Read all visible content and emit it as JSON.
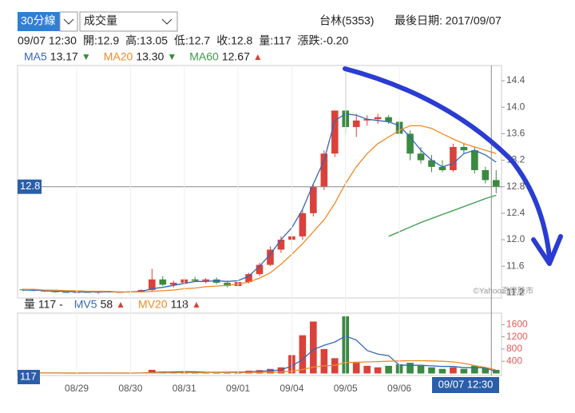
{
  "header": {
    "period_select": "30分線",
    "indicator_select": "成交量",
    "stock": "台林(5353)",
    "last_date": "最後日期: 2017/09/07",
    "info": [
      "09/07 12:30",
      "開:12.9",
      "高:13.05",
      "低:12.7",
      "收:12.8",
      "量:117",
      "漲跌:-0.20"
    ],
    "watermark": "©Yahoo奇摩股市"
  },
  "chart_data": [
    {
      "type": "candlestick",
      "current_label": "12.8",
      "up_color": "#d9423a",
      "down_color": "#3a8a40",
      "open": [
        11.25,
        11.24,
        11.23,
        11.22,
        11.21,
        11.2,
        11.21,
        11.2,
        11.22,
        11.21,
        11.21,
        11.22,
        11.24,
        11.4,
        11.32,
        11.35,
        11.4,
        11.38,
        11.4,
        11.35,
        11.3,
        11.36,
        11.48,
        11.62,
        11.85,
        12.0,
        12.05,
        12.4,
        12.8,
        13.3,
        13.95,
        13.7,
        13.8,
        13.82,
        13.85,
        13.78,
        13.6,
        13.3,
        13.2,
        13.1,
        13.05,
        13.4,
        13.35,
        13.05,
        12.9
      ],
      "high": [
        11.26,
        11.25,
        11.24,
        11.23,
        11.22,
        11.22,
        11.22,
        11.22,
        11.23,
        11.22,
        11.23,
        11.25,
        11.56,
        11.45,
        11.38,
        11.42,
        11.44,
        11.42,
        11.43,
        11.38,
        11.38,
        11.5,
        11.65,
        11.9,
        12.05,
        12.1,
        12.45,
        12.85,
        13.35,
        13.95,
        14.55,
        13.9,
        13.88,
        13.9,
        13.88,
        13.82,
        13.65,
        13.4,
        13.28,
        13.2,
        13.45,
        13.45,
        13.4,
        13.1,
        13.05
      ],
      "low": [
        11.22,
        11.22,
        11.21,
        11.2,
        11.2,
        11.19,
        11.2,
        11.18,
        11.2,
        11.2,
        11.2,
        11.21,
        11.22,
        11.3,
        11.28,
        11.32,
        11.36,
        11.34,
        11.33,
        11.28,
        11.28,
        11.34,
        11.45,
        11.6,
        11.8,
        11.9,
        12.0,
        12.35,
        12.75,
        13.25,
        13.6,
        13.55,
        13.72,
        13.75,
        13.75,
        13.55,
        13.2,
        13.15,
        13.02,
        13.02,
        13.02,
        13.3,
        13.0,
        12.85,
        12.7
      ],
      "close": [
        11.24,
        11.23,
        11.22,
        11.21,
        11.2,
        11.21,
        11.2,
        11.22,
        11.21,
        11.21,
        11.22,
        11.24,
        11.4,
        11.32,
        11.35,
        11.4,
        11.38,
        11.4,
        11.35,
        11.3,
        11.36,
        11.48,
        11.62,
        11.85,
        12.0,
        12.05,
        12.4,
        12.8,
        13.3,
        13.95,
        13.7,
        13.8,
        13.82,
        13.85,
        13.78,
        13.6,
        13.3,
        13.2,
        13.1,
        13.05,
        13.4,
        13.35,
        13.05,
        12.9,
        12.8
      ],
      "series": [
        {
          "name": "MA5",
          "color": "#3566b8",
          "legend_value": "13.17",
          "legend_arrow": "▼",
          "legend_arrow_color": "#3a8a40",
          "values": [
            11.24,
            11.24,
            11.23,
            11.22,
            11.22,
            11.21,
            11.21,
            11.21,
            11.21,
            11.21,
            11.21,
            11.22,
            11.26,
            11.28,
            11.31,
            11.34,
            11.37,
            11.37,
            11.38,
            11.37,
            11.38,
            11.45,
            11.6,
            11.78,
            12.0,
            12.18,
            12.46,
            12.84,
            13.2,
            13.8,
            13.9,
            13.88,
            13.82,
            13.8,
            13.78,
            13.72,
            13.55,
            13.35,
            13.2,
            13.1,
            13.15,
            13.3,
            13.35,
            13.28,
            13.17
          ]
        },
        {
          "name": "MA20",
          "color": "#f08a24",
          "legend_value": "13.30",
          "legend_arrow": "▼",
          "legend_arrow_color": "#3a8a40",
          "values": [
            11.25,
            11.25,
            11.24,
            11.24,
            11.23,
            11.23,
            11.22,
            11.22,
            11.22,
            11.21,
            11.21,
            11.21,
            11.22,
            11.23,
            11.24,
            11.26,
            11.27,
            11.29,
            11.3,
            11.31,
            11.33,
            11.36,
            11.42,
            11.5,
            11.63,
            11.78,
            11.94,
            12.12,
            12.3,
            12.55,
            12.85,
            13.1,
            13.3,
            13.45,
            13.55,
            13.65,
            13.72,
            13.72,
            13.68,
            13.6,
            13.52,
            13.45,
            13.4,
            13.35,
            13.3
          ]
        },
        {
          "name": "MA60",
          "color": "#3b9b4a",
          "legend_value": "12.67",
          "legend_arrow": "▲",
          "legend_arrow_color": "#d9423a",
          "values": [
            null,
            null,
            null,
            null,
            null,
            null,
            null,
            null,
            null,
            null,
            null,
            null,
            null,
            null,
            null,
            null,
            null,
            null,
            null,
            null,
            null,
            null,
            null,
            null,
            null,
            null,
            null,
            null,
            null,
            null,
            null,
            null,
            null,
            null,
            12.05,
            12.12,
            12.19,
            12.26,
            12.32,
            12.38,
            12.44,
            12.5,
            12.56,
            12.62,
            12.67
          ]
        }
      ],
      "ylim": [
        11.12,
        14.63
      ],
      "yticks": [
        11.2,
        11.6,
        {
          "value": 12,
          "label": "12.0"
        },
        12.4,
        12.8,
        13.2,
        13.6,
        {
          "value": 14,
          "label": "14.0"
        },
        14.4
      ]
    },
    {
      "type": "bar",
      "legend_title": "量 117 -",
      "current_label": "117",
      "cursor_label": "09/07 12:30",
      "categories": [
        null,
        null,
        null,
        null,
        null,
        "08/29",
        null,
        null,
        null,
        null,
        "08/30",
        null,
        null,
        null,
        null,
        "08/31",
        null,
        null,
        null,
        null,
        "09/01",
        null,
        null,
        null,
        null,
        "09/04",
        null,
        null,
        null,
        null,
        "09/05",
        null,
        null,
        null,
        null,
        "09/06",
        null,
        null,
        null,
        null,
        null,
        null,
        null,
        null,
        null
      ],
      "values": [
        20,
        15,
        10,
        15,
        10,
        10,
        20,
        15,
        10,
        10,
        15,
        20,
        120,
        60,
        40,
        50,
        40,
        30,
        40,
        50,
        60,
        90,
        110,
        150,
        200,
        600,
        1250,
        1700,
        800,
        500,
        1870,
        350,
        250,
        200,
        250,
        300,
        350,
        250,
        200,
        150,
        200,
        150,
        250,
        180,
        117
      ],
      "series": [
        {
          "name": "MV5",
          "color": "#3566b8",
          "legend_value": "58",
          "legend_arrow": "▲",
          "legend_arrow_color": "#d9423a",
          "values": [
            20,
            18,
            16,
            15,
            14,
            12,
            13,
            14,
            13,
            13,
            14,
            15,
            35,
            43,
            49,
            58,
            54,
            42,
            40,
            42,
            44,
            52,
            70,
            90,
            122,
            242,
            462,
            780,
            920,
            1030,
            1224,
            1094,
            754,
            634,
            584,
            270,
            270,
            270,
            250,
            230,
            230,
            190,
            190,
            186,
            58
          ]
        },
        {
          "name": "MV20",
          "color": "#f08a24",
          "legend_value": "118",
          "legend_arrow": "▲",
          "legend_arrow_color": "#d9423a",
          "values": [
            20,
            19,
            18,
            17,
            16,
            15,
            15,
            15,
            15,
            14,
            14,
            15,
            20,
            22,
            24,
            26,
            27,
            28,
            29,
            30,
            32,
            35,
            38,
            42,
            48,
            75,
            130,
            210,
            250,
            270,
            360,
            370,
            380,
            390,
            400,
            410,
            420,
            420,
            410,
            400,
            380,
            330,
            260,
            200,
            118
          ]
        }
      ],
      "ylim": [
        -65,
        1975
      ],
      "yticks": [
        400,
        800,
        1200,
        1600
      ]
    }
  ]
}
